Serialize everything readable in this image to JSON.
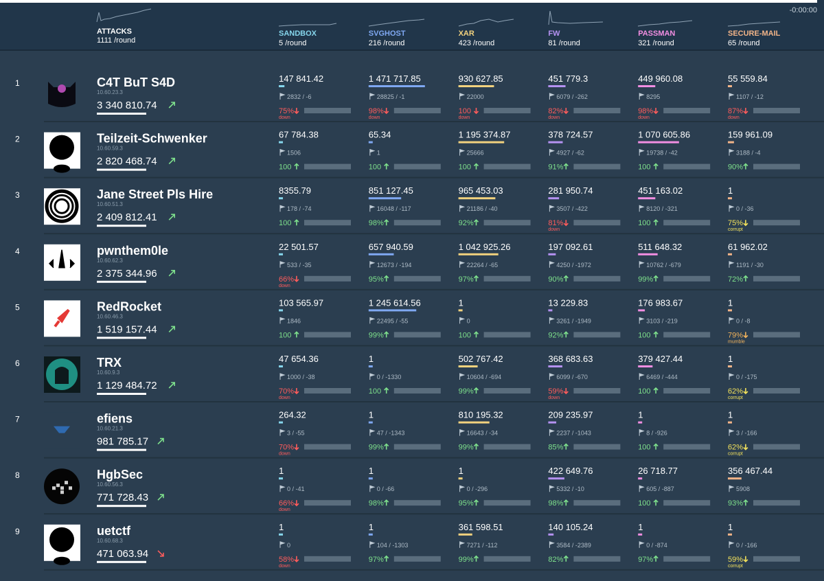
{
  "header": {
    "time": "-0:00:00",
    "per_round": "/round",
    "attacks": {
      "label": "ATTACKS",
      "count": 1111
    }
  },
  "colors": {
    "ok": "#7ee08c",
    "down": "#ff5c5c",
    "corrupt": "#f2e15c",
    "mumble": "#f2b35c"
  },
  "services": [
    {
      "name": "SANDBOX",
      "count": 5,
      "color": "#86d6ec"
    },
    {
      "name": "SVGHOST",
      "count": 216,
      "color": "#7fa8f2"
    },
    {
      "name": "XAR",
      "count": 423,
      "color": "#f2d27e"
    },
    {
      "name": "FW",
      "count": 81,
      "color": "#b592f2"
    },
    {
      "name": "PASSMAN",
      "count": 321,
      "color": "#f28ee2"
    },
    {
      "name": "SECURE-MAIL",
      "count": 65,
      "color": "#f2b488"
    }
  ],
  "teams": [
    {
      "rank": 1,
      "name": "C4T BuT S4D",
      "ip": "10.60.23.3",
      "score": "3 340 810.74",
      "trend": "up",
      "cells": [
        {
          "score": "147 841.42",
          "flags": "2832 / -6",
          "sla": "75%",
          "status": "down"
        },
        {
          "score": "1 471 717.85",
          "flags": "28825 / -1",
          "sla": "98%",
          "status": "down"
        },
        {
          "score": "930 627.85",
          "flags": "22000",
          "sla": "100",
          "status": "down"
        },
        {
          "score": "451 779.3",
          "flags": "6079 / -262",
          "sla": "82%",
          "status": "down"
        },
        {
          "score": "449 960.08",
          "flags": "8295",
          "sla": "98%",
          "status": "down"
        },
        {
          "score": "55 559.84",
          "flags": "1107 / -12",
          "sla": "87%",
          "status": "down"
        }
      ]
    },
    {
      "rank": 2,
      "name": "Teilzeit-Schwenker",
      "ip": "10.60.59.3",
      "score": "2 820 468.74",
      "trend": "up",
      "cells": [
        {
          "score": "67 784.38",
          "flags": "1506",
          "sla": "100"
        },
        {
          "score": "65.34",
          "flags": "1",
          "sla": "100"
        },
        {
          "score": "1 195 374.87",
          "flags": "25666",
          "sla": "100"
        },
        {
          "score": "378 724.57",
          "flags": "4927 / -62",
          "sla": "91%"
        },
        {
          "score": "1 070 605.86",
          "flags": "19738 / -42",
          "sla": "100"
        },
        {
          "score": "159 961.09",
          "flags": "3188 / -4",
          "sla": "90%"
        }
      ]
    },
    {
      "rank": 3,
      "name": "Jane Street Pls Hire",
      "ip": "10.60.51.3",
      "score": "2 409 812.41",
      "trend": "up",
      "cells": [
        {
          "score": "8355.79",
          "flags": "178 / -74",
          "sla": "100"
        },
        {
          "score": "851 127.45",
          "flags": "16048 / -117",
          "sla": "98%"
        },
        {
          "score": "965 453.03",
          "flags": "21186 / -40",
          "sla": "92%"
        },
        {
          "score": "281 950.74",
          "flags": "3507 / -422",
          "sla": "81%",
          "status": "down"
        },
        {
          "score": "451 163.02",
          "flags": "8120 / -321",
          "sla": "100"
        },
        {
          "score": "1",
          "flags": "0 / -36",
          "sla": "75%",
          "status": "corrupt"
        }
      ]
    },
    {
      "rank": 4,
      "name": "pwnthem0le",
      "ip": "10.60.62.3",
      "score": "2 375 344.96",
      "trend": "up",
      "cells": [
        {
          "score": "22 501.57",
          "flags": "533 / -35",
          "sla": "66%",
          "status": "down"
        },
        {
          "score": "657 940.59",
          "flags": "12673 / -194",
          "sla": "95%"
        },
        {
          "score": "1 042 925.26",
          "flags": "22264 / -65",
          "sla": "97%"
        },
        {
          "score": "197 092.61",
          "flags": "4250 / -1972",
          "sla": "90%"
        },
        {
          "score": "511 648.32",
          "flags": "10762 / -679",
          "sla": "99%"
        },
        {
          "score": "61 962.02",
          "flags": "1191 / -30",
          "sla": "72%"
        }
      ]
    },
    {
      "rank": 5,
      "name": "RedRocket",
      "ip": "10.60.46.3",
      "score": "1 519 157.44",
      "trend": "up",
      "cells": [
        {
          "score": "103 565.97",
          "flags": "1846",
          "sla": "100"
        },
        {
          "score": "1 245 614.56",
          "flags": "22495 / -55",
          "sla": "99%"
        },
        {
          "score": "1",
          "flags": "0",
          "sla": "100"
        },
        {
          "score": "13 229.83",
          "flags": "3261 / -1949",
          "sla": "92%"
        },
        {
          "score": "176 983.67",
          "flags": "3103 / -219",
          "sla": "100"
        },
        {
          "score": "1",
          "flags": "0 / -8",
          "sla": "79%",
          "status": "mumble"
        }
      ]
    },
    {
      "rank": 6,
      "name": "TRX",
      "ip": "10.60.9.3",
      "score": "1 129 484.72",
      "trend": "up",
      "cells": [
        {
          "score": "47 654.36",
          "flags": "1000 / -38",
          "sla": "70%",
          "status": "down"
        },
        {
          "score": "1",
          "flags": "0 / -1330",
          "sla": "100"
        },
        {
          "score": "502 767.42",
          "flags": "10604 / -694",
          "sla": "99%"
        },
        {
          "score": "368 683.63",
          "flags": "6099 / -670",
          "sla": "59%",
          "status": "down"
        },
        {
          "score": "379 427.44",
          "flags": "6469 / -444",
          "sla": "100"
        },
        {
          "score": "1",
          "flags": "0 / -175",
          "sla": "62%",
          "status": "corrupt"
        }
      ]
    },
    {
      "rank": 7,
      "name": "efiens",
      "ip": "10.60.21.3",
      "score": "981 785.17",
      "trend": "up",
      "cells": [
        {
          "score": "264.32",
          "flags": "3 / -55",
          "sla": "70%",
          "status": "down"
        },
        {
          "score": "1",
          "flags": "47 / -1343",
          "sla": "99%"
        },
        {
          "score": "810 195.32",
          "flags": "16643 / -34",
          "sla": "99%"
        },
        {
          "score": "209 235.97",
          "flags": "2237 / -1043",
          "sla": "85%"
        },
        {
          "score": "1",
          "flags": "8 / -926",
          "sla": "100"
        },
        {
          "score": "1",
          "flags": "3 / -166",
          "sla": "62%",
          "status": "corrupt"
        }
      ]
    },
    {
      "rank": 8,
      "name": "HgbSec",
      "ip": "10.60.56.3",
      "score": "771 728.43",
      "trend": "up",
      "cells": [
        {
          "score": "1",
          "flags": "0 / -41",
          "sla": "66%",
          "status": "down"
        },
        {
          "score": "1",
          "flags": "0 / -66",
          "sla": "98%"
        },
        {
          "score": "1",
          "flags": "0 / -296",
          "sla": "95%"
        },
        {
          "score": "422 649.76",
          "flags": "5332 / -10",
          "sla": "98%"
        },
        {
          "score": "26 718.77",
          "flags": "605 / -887",
          "sla": "100"
        },
        {
          "score": "356 467.44",
          "flags": "5908",
          "sla": "93%"
        }
      ]
    },
    {
      "rank": 9,
      "name": "uetctf",
      "ip": "10.60.68.3",
      "score": "471 063.94",
      "trend": "down",
      "cells": [
        {
          "score": "1",
          "flags": "0",
          "sla": "58%",
          "status": "down"
        },
        {
          "score": "1",
          "flags": "104 / -1303",
          "sla": "97%"
        },
        {
          "score": "361 598.51",
          "flags": "7271 / -112",
          "sla": "99%"
        },
        {
          "score": "140 105.24",
          "flags": "3584 / -2389",
          "sla": "82%"
        },
        {
          "score": "1",
          "flags": "0 / -874",
          "sla": "97%"
        },
        {
          "score": "1",
          "flags": "0 / -166",
          "sla": "59%",
          "status": "corrupt"
        }
      ]
    }
  ]
}
